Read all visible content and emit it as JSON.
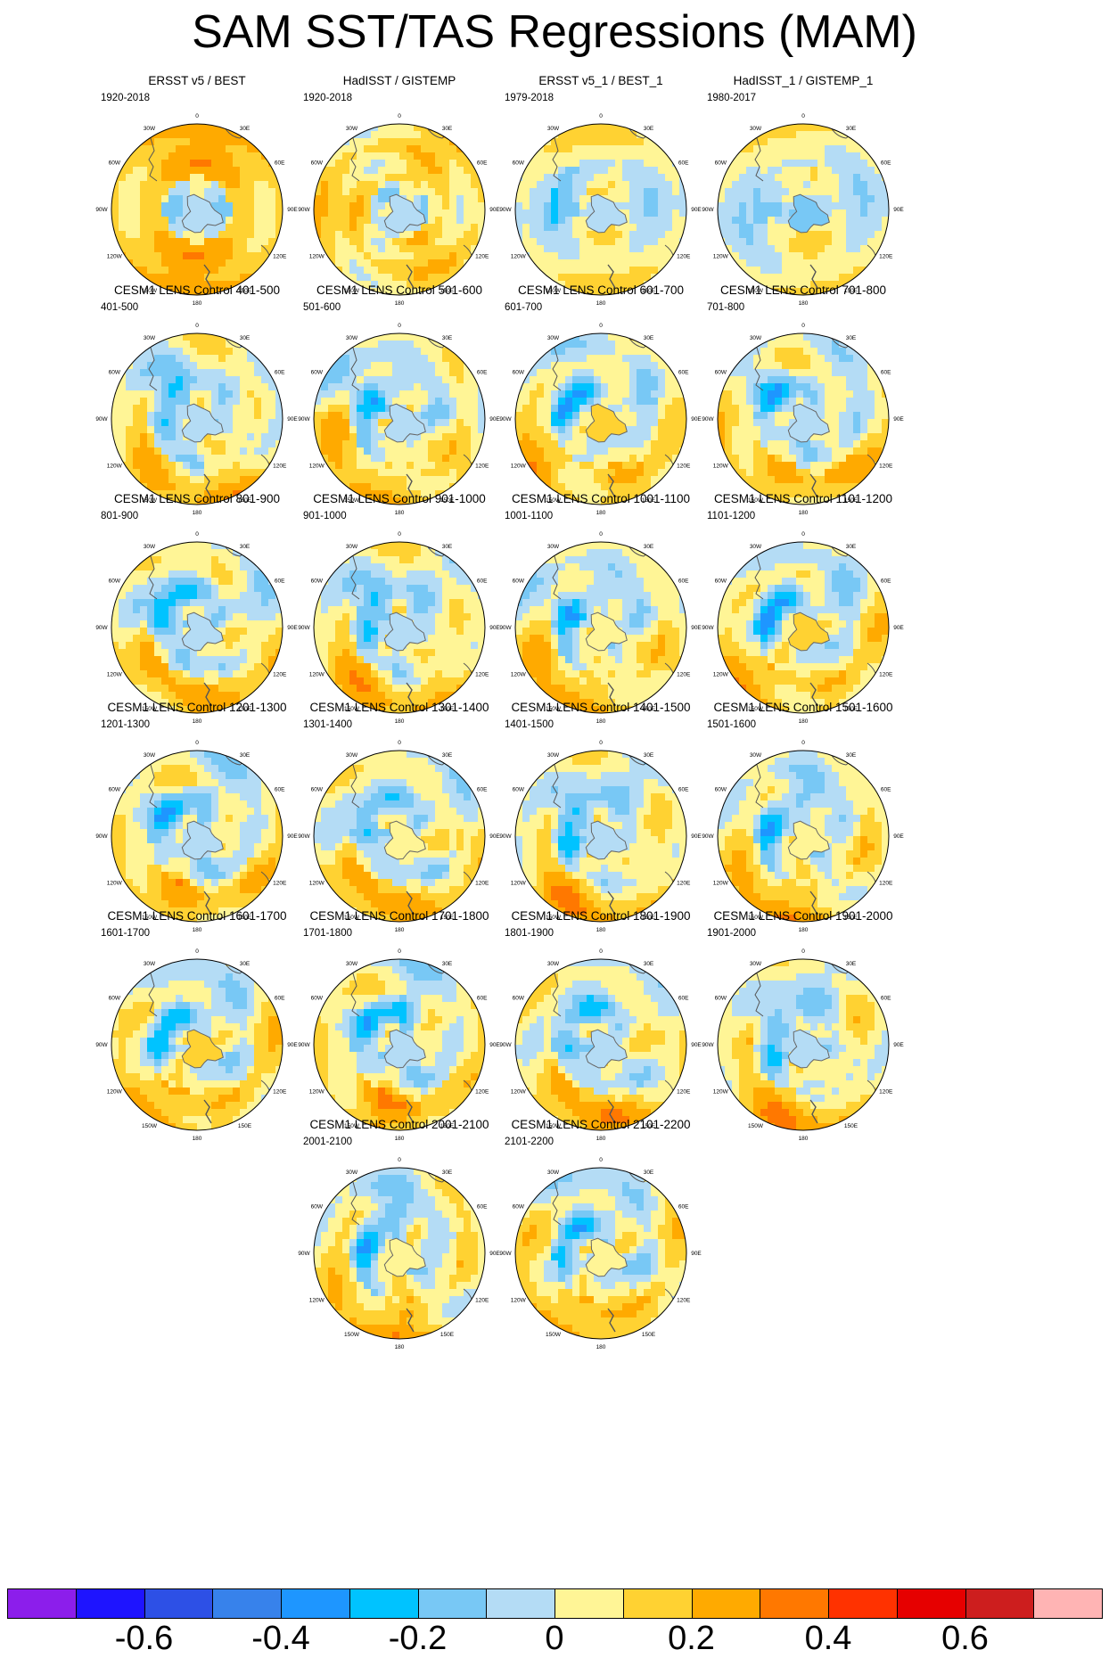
{
  "chart_data": {
    "type": "heatmap",
    "title": "SAM SST/TAS Regressions (MAM)",
    "projection": "south polar stereographic",
    "map_labels": [
      "0",
      "30E",
      "60E",
      "90E",
      "120E",
      "150E",
      "180",
      "150W",
      "120W",
      "90W",
      "60W",
      "30W"
    ],
    "panels": [
      {
        "title": "ERSST v5 / BEST",
        "period": "1920-2018",
        "pattern": "obs_warm"
      },
      {
        "title": "HadISST / GISTEMP",
        "period": "1920-2018",
        "pattern": "obs_warm2"
      },
      {
        "title": "ERSST v5_1 / BEST_1",
        "period": "1979-2018",
        "pattern": "obs_mixed"
      },
      {
        "title": "HadISST_1 / GISTEMP_1",
        "period": "1980-2017",
        "pattern": "obs_mixed2"
      },
      {
        "title": "CESM1 LENS Control 401-500",
        "period": "401-500",
        "pattern": "model"
      },
      {
        "title": "CESM1 LENS Control 501-600",
        "period": "501-600",
        "pattern": "model"
      },
      {
        "title": "CESM1 LENS Control 601-700",
        "period": "601-700",
        "pattern": "model"
      },
      {
        "title": "CESM1 LENS Control 701-800",
        "period": "701-800",
        "pattern": "model"
      },
      {
        "title": "CESM1 LENS Control 801-900",
        "period": "801-900",
        "pattern": "model"
      },
      {
        "title": "CESM1 LENS Control 901-1000",
        "period": "901-1000",
        "pattern": "model"
      },
      {
        "title": "CESM1 LENS Control 1001-1100",
        "period": "1001-1100",
        "pattern": "model"
      },
      {
        "title": "CESM1 LENS Control 1101-1200",
        "period": "1101-1200",
        "pattern": "model"
      },
      {
        "title": "CESM1 LENS Control 1201-1300",
        "period": "1201-1300",
        "pattern": "model"
      },
      {
        "title": "CESM1 LENS Control 1301-1400",
        "period": "1301-1400",
        "pattern": "model"
      },
      {
        "title": "CESM1 LENS Control 1401-1500",
        "period": "1401-1500",
        "pattern": "model"
      },
      {
        "title": "CESM1 LENS Control 1501-1600",
        "period": "1501-1600",
        "pattern": "model"
      },
      {
        "title": "CESM1 LENS Control 1601-1700",
        "period": "1601-1700",
        "pattern": "model"
      },
      {
        "title": "CESM1 LENS Control 1701-1800",
        "period": "1701-1800",
        "pattern": "model"
      },
      {
        "title": "CESM1 LENS Control 1801-1900",
        "period": "1801-1900",
        "pattern": "model"
      },
      {
        "title": "CESM1 LENS Control 1901-2000",
        "period": "1901-2000",
        "pattern": "model"
      },
      {
        "title": "CESM1 LENS Control 2001-2100",
        "period": "2001-2100",
        "pattern": "model"
      },
      {
        "title": "CESM1 LENS Control 2101-2200",
        "period": "2101-2200",
        "pattern": "model"
      }
    ],
    "colorbar": {
      "levels": [
        -0.7,
        -0.6,
        -0.5,
        -0.4,
        -0.3,
        -0.2,
        -0.1,
        0,
        0.1,
        0.2,
        0.3,
        0.4,
        0.5,
        0.6,
        0.7
      ],
      "colors": [
        "#8c1eeb",
        "#1e14ff",
        "#2d50e6",
        "#3782eb",
        "#1e96ff",
        "#00c3ff",
        "#78c8f5",
        "#b4dcf5",
        "#fff596",
        "#ffd232",
        "#ffaa00",
        "#ff7800",
        "#ff3200",
        "#e60000",
        "#cd1e1e",
        "#ffb4b4"
      ],
      "tick_labels": [
        "-0.6",
        "-0.4",
        "-0.2",
        "0",
        "0.2",
        "0.4",
        "0.6"
      ],
      "tick_values": [
        -0.6,
        -0.4,
        -0.2,
        0,
        0.2,
        0.4,
        0.6
      ]
    }
  }
}
